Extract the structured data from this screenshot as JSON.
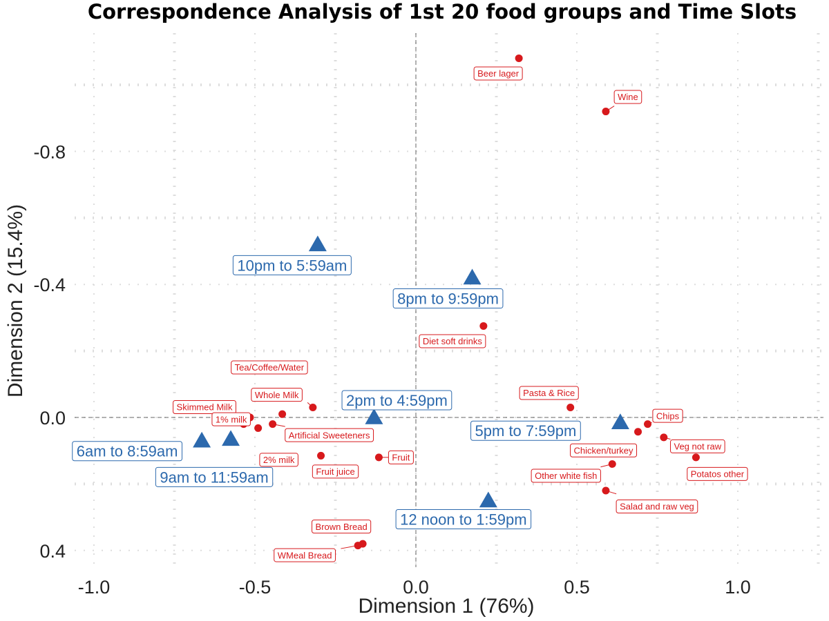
{
  "chart_data": {
    "type": "scatter",
    "title": "Correspondence Analysis of 1st 20 food groups and Time Slots",
    "xlabel": "Dimension 1 (76%)",
    "ylabel": "Dimension 2 (15.4%)",
    "xlim": [
      -1.08,
      1.27
    ],
    "ylim": [
      -1.18,
      0.44
    ],
    "y_reversed": true,
    "x_ticks": [
      {
        "value": -1.0,
        "label": "-1.0"
      },
      {
        "value": -0.5,
        "label": "-0.5"
      },
      {
        "value": 0.0,
        "label": "0.0"
      },
      {
        "value": 0.5,
        "label": "0.5"
      },
      {
        "value": 1.0,
        "label": "1.0"
      }
    ],
    "y_ticks": [
      {
        "value": -0.8,
        "label": "-0.8"
      },
      {
        "value": -0.4,
        "label": "-0.4"
      },
      {
        "value": 0.0,
        "label": "0.0"
      },
      {
        "value": 0.4,
        "label": "0.4"
      }
    ],
    "grid": true,
    "reference_lines": {
      "x": 0,
      "y": 0
    },
    "colors": {
      "food": "#d7191c",
      "time": "#2c69ad",
      "grid": "#dddddd"
    },
    "series": [
      {
        "marker": "circle",
        "color": "#d7191c",
        "points": [
          {
            "label": "Beer lager",
            "x": 0.32,
            "y": -1.08
          },
          {
            "label": "Wine",
            "x": 0.59,
            "y": -0.92
          },
          {
            "label": "Diet soft drinks",
            "x": 0.21,
            "y": -0.275
          },
          {
            "label": "Tea/Coffee/Water",
            "x": -0.32,
            "y": -0.03
          },
          {
            "label": "Pasta & Rice",
            "x": 0.48,
            "y": -0.03
          },
          {
            "label": "Whole Milk",
            "x": -0.415,
            "y": -0.01
          },
          {
            "label": "Skimmed Milk",
            "x": -0.515,
            "y": 0.0
          },
          {
            "label": "Chips",
            "x": 0.72,
            "y": 0.02
          },
          {
            "label": "Artificial Sweeteners",
            "x": -0.445,
            "y": 0.02
          },
          {
            "label": "1% milk",
            "x": -0.535,
            "y": 0.02
          },
          {
            "label": "2% milk",
            "x": -0.49,
            "y": 0.032
          },
          {
            "label": "Chicken/turkey",
            "x": 0.69,
            "y": 0.043
          },
          {
            "label": "Veg not raw",
            "x": 0.77,
            "y": 0.06
          },
          {
            "label": "Fruit juice",
            "x": -0.295,
            "y": 0.115
          },
          {
            "label": "Fruit",
            "x": -0.115,
            "y": 0.12
          },
          {
            "label": "Potatos other",
            "x": 0.87,
            "y": 0.12
          },
          {
            "label": "Other white fish",
            "x": 0.61,
            "y": 0.14
          },
          {
            "label": "Salad and raw veg",
            "x": 0.59,
            "y": 0.22
          },
          {
            "label": "Brown Bread",
            "x": -0.165,
            "y": 0.38
          },
          {
            "label": "WMeal Bread",
            "x": -0.18,
            "y": 0.385
          }
        ]
      },
      {
        "marker": "triangle",
        "color": "#2c69ad",
        "points": [
          {
            "label": "10pm to 5:59am",
            "x": -0.305,
            "y": -0.52
          },
          {
            "label": "8pm to 9:59pm",
            "x": 0.175,
            "y": -0.42
          },
          {
            "label": "2pm to 4:59pm",
            "x": -0.13,
            "y": 0.0
          },
          {
            "label": "5pm to 7:59pm",
            "x": 0.635,
            "y": 0.015
          },
          {
            "label": "6am to 8:59am",
            "x": -0.665,
            "y": 0.07
          },
          {
            "label": "9am to 11:59am",
            "x": -0.575,
            "y": 0.065
          },
          {
            "label": "12 noon to 1:59pm",
            "x": 0.225,
            "y": 0.25
          }
        ]
      }
    ]
  }
}
